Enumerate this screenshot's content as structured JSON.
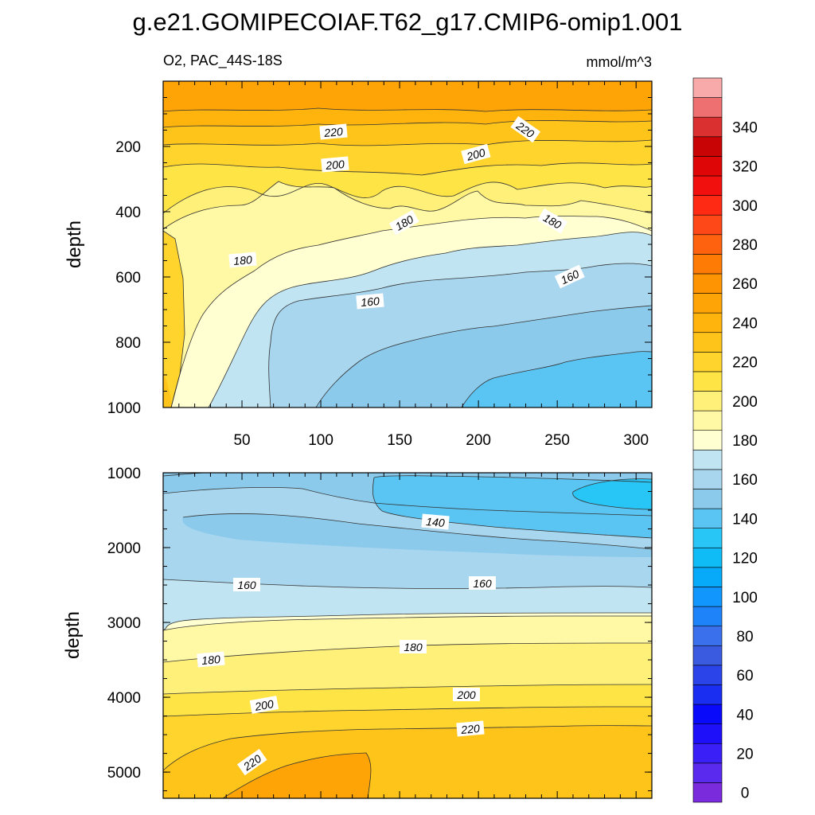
{
  "chart_data": {
    "type": "contour",
    "title": "g.e21.GOMIPECOIAF.T62_g17.CMIP6-omip1.001",
    "variable": "O2, PAC_44S-18S",
    "units": "mmol/m^3",
    "colorbar": {
      "levels": [
        0,
        10,
        20,
        30,
        40,
        50,
        60,
        70,
        80,
        90,
        100,
        110,
        120,
        130,
        140,
        150,
        160,
        170,
        180,
        190,
        200,
        210,
        220,
        230,
        240,
        250,
        260,
        270,
        280,
        290,
        300,
        310,
        320,
        330,
        340,
        350,
        360
      ],
      "tick_labels": [
        "0",
        "20",
        "40",
        "60",
        "80",
        "100",
        "120",
        "140",
        "160",
        "180",
        "200",
        "220",
        "240",
        "260",
        "280",
        "300",
        "320",
        "340"
      ],
      "colors": [
        "#7a2cdd",
        "#5a2bee",
        "#3a1ff6",
        "#1e10f8",
        "#0a0afa",
        "#1a2ef2",
        "#2a44ea",
        "#3a5ae0",
        "#3a70ec",
        "#1e82f8",
        "#1096fc",
        "#06aaf8",
        "#10bcf6",
        "#28c6f6",
        "#5ac4f2",
        "#8ccaec",
        "#a8d6ee",
        "#c0e4f2",
        "#ffffd2",
        "#fff8a4",
        "#fff07a",
        "#ffe446",
        "#ffd42c",
        "#fec41a",
        "#feb40c",
        "#fea406",
        "#fe9402",
        "#fe7c06",
        "#fe620e",
        "#fe4818",
        "#fe2a14",
        "#f2100e",
        "#de0606",
        "#c80404",
        "#da3030",
        "#ee7070",
        "#f8aaaa"
      ]
    },
    "panels": [
      {
        "name": "upper",
        "ylabel": "depth",
        "ylim": [
          1000,
          0
        ],
        "xlim": [
          0,
          310
        ],
        "xticks": [
          "50",
          "100",
          "150",
          "200",
          "250",
          "300"
        ],
        "yticks": [
          "200",
          "400",
          "600",
          "800",
          "1000"
        ],
        "contour_labels": [
          "220",
          "220",
          "200",
          "200",
          "180",
          "180",
          "180",
          "160",
          "160"
        ]
      },
      {
        "name": "lower",
        "ylabel": "depth",
        "ylim": [
          5350,
          1000
        ],
        "xlim": [
          0,
          310
        ],
        "yticks": [
          "1000",
          "2000",
          "3000",
          "4000",
          "5000"
        ],
        "contour_labels": [
          "140",
          "160",
          "160",
          "180",
          "180",
          "200",
          "200",
          "220",
          "220"
        ]
      }
    ]
  }
}
